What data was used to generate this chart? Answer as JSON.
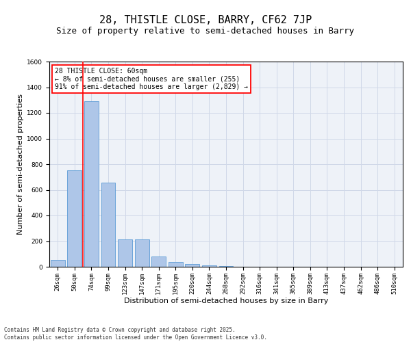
{
  "title": "28, THISTLE CLOSE, BARRY, CF62 7JP",
  "subtitle": "Size of property relative to semi-detached houses in Barry",
  "xlabel": "Distribution of semi-detached houses by size in Barry",
  "ylabel": "Number of semi-detached properties",
  "annotation_title": "28 THISTLE CLOSE: 60sqm",
  "annotation_line1": "← 8% of semi-detached houses are smaller (255)",
  "annotation_line2": "91% of semi-detached houses are larger (2,829) →",
  "footer_line1": "Contains HM Land Registry data © Crown copyright and database right 2025.",
  "footer_line2": "Contains public sector information licensed under the Open Government Licence v3.0.",
  "categories": [
    "26sqm",
    "50sqm",
    "74sqm",
    "99sqm",
    "123sqm",
    "147sqm",
    "171sqm",
    "195sqm",
    "220sqm",
    "244sqm",
    "268sqm",
    "292sqm",
    "316sqm",
    "341sqm",
    "365sqm",
    "389sqm",
    "413sqm",
    "437sqm",
    "462sqm",
    "486sqm",
    "510sqm"
  ],
  "values": [
    55,
    750,
    1290,
    655,
    215,
    215,
    80,
    35,
    20,
    12,
    5,
    0,
    0,
    0,
    0,
    0,
    0,
    0,
    0,
    0,
    0
  ],
  "bar_color": "#aec6e8",
  "bar_edge_color": "#5b9bd5",
  "vline_color": "red",
  "ylim": [
    0,
    1600
  ],
  "yticks": [
    0,
    200,
    400,
    600,
    800,
    1000,
    1200,
    1400,
    1600
  ],
  "grid_color": "#d0d8e8",
  "bg_color": "#eef2f8",
  "title_fontsize": 11,
  "subtitle_fontsize": 9,
  "tick_fontsize": 6.5,
  "ylabel_fontsize": 8,
  "xlabel_fontsize": 8,
  "annotation_fontsize": 7,
  "footer_fontsize": 5.5
}
